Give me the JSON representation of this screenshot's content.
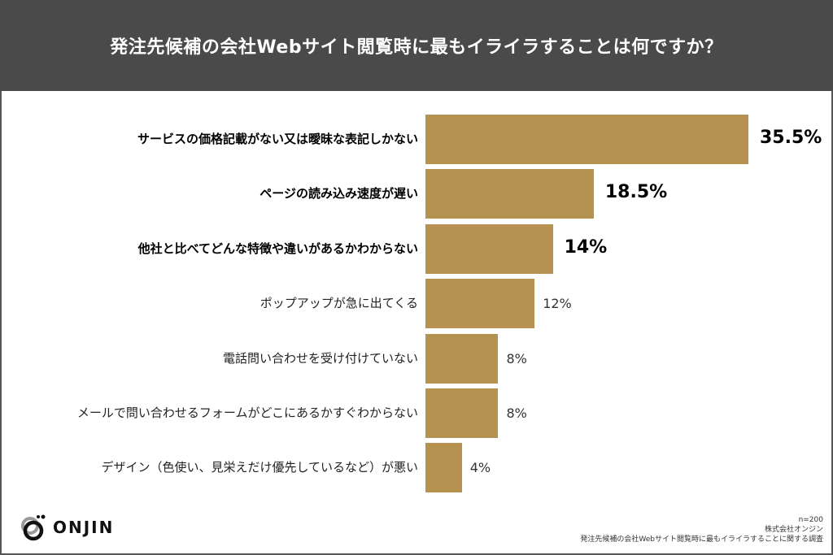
{
  "chart_data": {
    "type": "bar",
    "orientation": "horizontal",
    "title": "発注先候補の会社Webサイト閲覧時に最もイライラすることは何ですか？",
    "categories": [
      "サービスの価格記載がない又は曖昧な表記しかない",
      "ページの読み込み速度が遅い",
      "他社と比べてどんな特徴や違いがあるかわからない",
      "ポップアップが急に出てくる",
      "電話問い合わせを受け付けていない",
      "メールで問い合わせるフォームがどこにあるかすぐわからない",
      "デザイン（色使い、見栄えだけ優先しているなど）が悪い"
    ],
    "values": [
      35.5,
      18.5,
      14,
      12,
      8,
      8,
      4
    ],
    "value_labels": [
      "35.5%",
      "18.5%",
      "14%",
      "12%",
      "8%",
      "8%",
      "4%"
    ],
    "highlighted": [
      true,
      true,
      true,
      false,
      false,
      false,
      false
    ],
    "xlim": [
      0,
      36
    ],
    "grid": false,
    "bar_color": "#b5924f",
    "header_color": "#4a4a4a"
  },
  "footer": {
    "sample": "n=200",
    "company": "株式会社オンジン",
    "survey": "発注先候補の会社Webサイト閲覧時に最もイライラすることに関する調査"
  },
  "logo": {
    "text": "ONJIN"
  }
}
